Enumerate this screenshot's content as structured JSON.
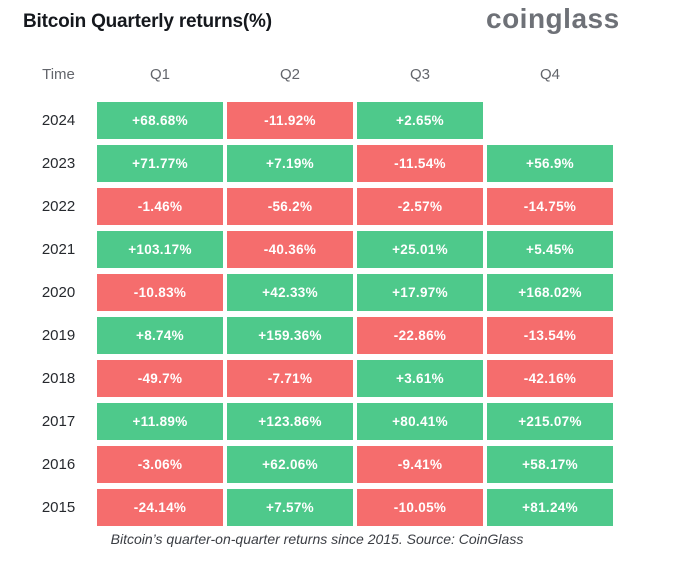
{
  "header": {
    "title": "Bitcoin Quarterly returns(%)",
    "logo_text": "coinglass"
  },
  "table": {
    "columns": [
      "Time",
      "Q1",
      "Q2",
      "Q3",
      "Q4"
    ],
    "rows": [
      {
        "year": "2024",
        "cells": [
          {
            "value": "+68.68%",
            "sign": "pos"
          },
          {
            "value": "-11.92%",
            "sign": "neg"
          },
          {
            "value": "+2.65%",
            "sign": "pos"
          },
          null
        ]
      },
      {
        "year": "2023",
        "cells": [
          {
            "value": "+71.77%",
            "sign": "pos"
          },
          {
            "value": "+7.19%",
            "sign": "pos"
          },
          {
            "value": "-11.54%",
            "sign": "neg"
          },
          {
            "value": "+56.9%",
            "sign": "pos"
          }
        ]
      },
      {
        "year": "2022",
        "cells": [
          {
            "value": "-1.46%",
            "sign": "neg"
          },
          {
            "value": "-56.2%",
            "sign": "neg"
          },
          {
            "value": "-2.57%",
            "sign": "neg"
          },
          {
            "value": "-14.75%",
            "sign": "neg"
          }
        ]
      },
      {
        "year": "2021",
        "cells": [
          {
            "value": "+103.17%",
            "sign": "pos"
          },
          {
            "value": "-40.36%",
            "sign": "neg"
          },
          {
            "value": "+25.01%",
            "sign": "pos"
          },
          {
            "value": "+5.45%",
            "sign": "pos"
          }
        ]
      },
      {
        "year": "2020",
        "cells": [
          {
            "value": "-10.83%",
            "sign": "neg"
          },
          {
            "value": "+42.33%",
            "sign": "pos"
          },
          {
            "value": "+17.97%",
            "sign": "pos"
          },
          {
            "value": "+168.02%",
            "sign": "pos"
          }
        ]
      },
      {
        "year": "2019",
        "cells": [
          {
            "value": "+8.74%",
            "sign": "pos"
          },
          {
            "value": "+159.36%",
            "sign": "pos"
          },
          {
            "value": "-22.86%",
            "sign": "neg"
          },
          {
            "value": "-13.54%",
            "sign": "neg"
          }
        ]
      },
      {
        "year": "2018",
        "cells": [
          {
            "value": "-49.7%",
            "sign": "neg"
          },
          {
            "value": "-7.71%",
            "sign": "neg"
          },
          {
            "value": "+3.61%",
            "sign": "pos"
          },
          {
            "value": "-42.16%",
            "sign": "neg"
          }
        ]
      },
      {
        "year": "2017",
        "cells": [
          {
            "value": "+11.89%",
            "sign": "pos"
          },
          {
            "value": "+123.86%",
            "sign": "pos"
          },
          {
            "value": "+80.41%",
            "sign": "pos"
          },
          {
            "value": "+215.07%",
            "sign": "pos"
          }
        ]
      },
      {
        "year": "2016",
        "cells": [
          {
            "value": "-3.06%",
            "sign": "neg"
          },
          {
            "value": "+62.06%",
            "sign": "pos"
          },
          {
            "value": "-9.41%",
            "sign": "neg"
          },
          {
            "value": "+58.17%",
            "sign": "pos"
          }
        ]
      },
      {
        "year": "2015",
        "cells": [
          {
            "value": "-24.14%",
            "sign": "neg"
          },
          {
            "value": "+7.57%",
            "sign": "pos"
          },
          {
            "value": "-10.05%",
            "sign": "neg"
          },
          {
            "value": "+81.24%",
            "sign": "pos"
          }
        ]
      }
    ]
  },
  "caption": "Bitcoin’s quarter-on-quarter returns since 2015. Source: CoinGlass",
  "colors": {
    "positive": "#4ec98b",
    "negative": "#f56d6d",
    "title_text": "#15181d",
    "logo_text": "#6e7177",
    "year_text": "#26292e",
    "header_text": "#63666c",
    "caption_text": "#3b3e44",
    "cell_text": "#ffffff",
    "background": "#ffffff"
  },
  "chart_data": {
    "type": "table",
    "title": "Bitcoin Quarterly returns(%)",
    "columns": [
      "Time",
      "Q1",
      "Q2",
      "Q3",
      "Q4"
    ],
    "rows": [
      {
        "year": 2024,
        "values": [
          68.68,
          -11.92,
          2.65,
          null
        ]
      },
      {
        "year": 2023,
        "values": [
          71.77,
          7.19,
          -11.54,
          56.9
        ]
      },
      {
        "year": 2022,
        "values": [
          -1.46,
          -56.2,
          -2.57,
          -14.75
        ]
      },
      {
        "year": 2021,
        "values": [
          103.17,
          -40.36,
          25.01,
          5.45
        ]
      },
      {
        "year": 2020,
        "values": [
          -10.83,
          42.33,
          17.97,
          168.02
        ]
      },
      {
        "year": 2019,
        "values": [
          8.74,
          159.36,
          -22.86,
          -13.54
        ]
      },
      {
        "year": 2018,
        "values": [
          -49.7,
          -7.71,
          3.61,
          -42.16
        ]
      },
      {
        "year": 2017,
        "values": [
          11.89,
          123.86,
          80.41,
          215.07
        ]
      },
      {
        "year": 2016,
        "values": [
          -3.06,
          62.06,
          -9.41,
          58.17
        ]
      },
      {
        "year": 2015,
        "values": [
          -24.14,
          7.57,
          -10.05,
          81.24
        ]
      }
    ],
    "value_unit": "percent",
    "color_coding": {
      "positive": "green",
      "negative": "red"
    },
    "source_note": "Bitcoin’s quarter-on-quarter returns since 2015. Source: CoinGlass"
  }
}
